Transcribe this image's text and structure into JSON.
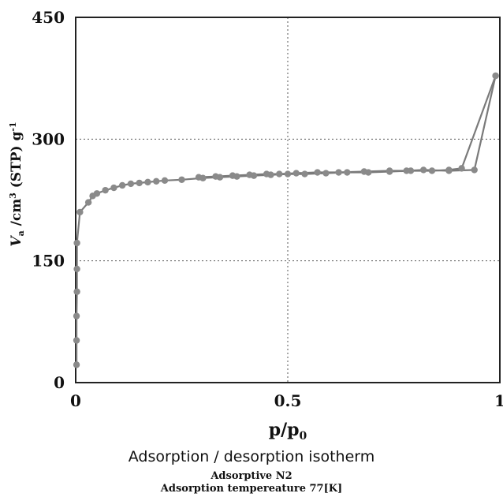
{
  "chart_data": {
    "type": "line",
    "title": "",
    "xlabel": "p/p0",
    "ylabel": "Va/cm3 (STP) g-1",
    "xlim": [
      0,
      1
    ],
    "ylim": [
      0,
      450
    ],
    "xticks": [
      0,
      0.5,
      1
    ],
    "xtick_labels": [
      "0",
      "0.5",
      "1"
    ],
    "yticks": [
      0,
      150,
      300,
      450
    ],
    "ytick_labels": [
      "0",
      "150",
      "300",
      "450"
    ],
    "grid": true,
    "series": [
      {
        "name": "",
        "x": [
          0.002,
          0.002,
          0.002,
          0.003,
          0.003,
          0.003,
          0.01,
          0.03,
          0.04,
          0.05,
          0.07,
          0.09,
          0.11,
          0.13,
          0.15,
          0.17,
          0.19,
          0.21,
          0.25,
          0.3,
          0.34,
          0.38,
          0.42,
          0.46,
          0.5,
          0.54,
          0.59,
          0.64,
          0.69,
          0.74,
          0.79,
          0.84,
          0.88,
          0.91,
          0.99
        ],
        "y": [
          22,
          52,
          82,
          112,
          140,
          172,
          210,
          222,
          230,
          233,
          237,
          240,
          243,
          245,
          246,
          247,
          248,
          249,
          250,
          252,
          253,
          254,
          255,
          256,
          257,
          257,
          258,
          259,
          259,
          260,
          261,
          261,
          262,
          264,
          378
        ]
      },
      {
        "name": "",
        "x": [
          0.99,
          0.94,
          0.88,
          0.82,
          0.78,
          0.74,
          0.68,
          0.62,
          0.57,
          0.52,
          0.48,
          0.45,
          0.41,
          0.37,
          0.33,
          0.29
        ],
        "y": [
          378,
          262,
          261,
          262,
          261,
          261,
          260,
          259,
          259,
          258,
          257,
          257,
          256,
          255,
          254,
          253
        ]
      }
    ]
  },
  "caption": {
    "title": "Adsorption / desorption isotherm",
    "line1": "Adsorptive N2",
    "line2": "Adsorption tempereature 77[K]"
  }
}
